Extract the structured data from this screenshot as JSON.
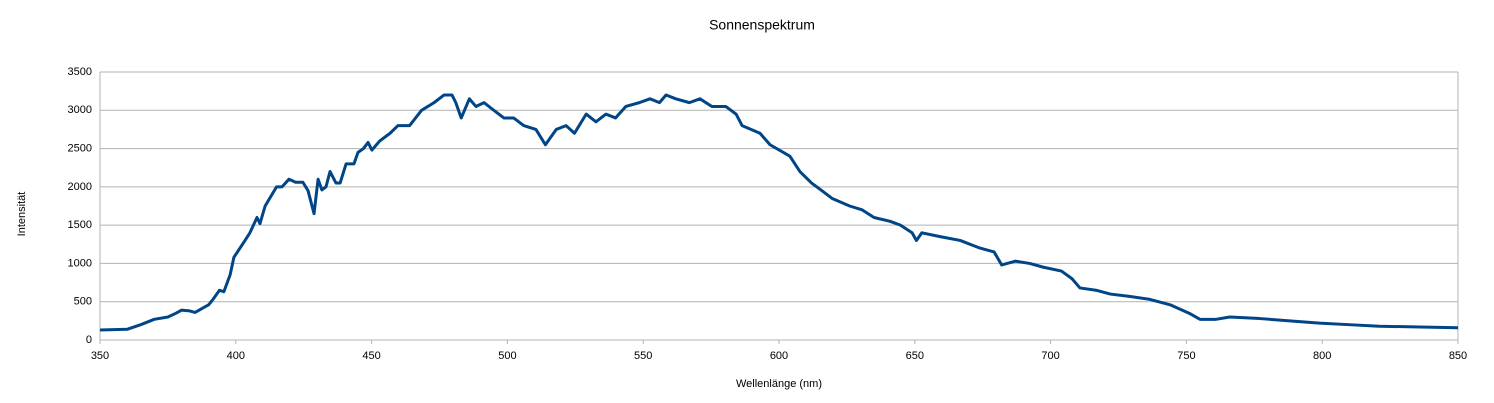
{
  "chart_data": {
    "type": "line",
    "title": "Sonnenspektrum",
    "x_label": "Wellenlänge (nm)",
    "y_label": "Intensität",
    "xlim": [
      350,
      850
    ],
    "xticks": [
      350,
      400,
      450,
      500,
      550,
      600,
      650,
      700,
      750,
      800,
      850
    ],
    "ylim": [
      0,
      3500
    ],
    "yticks": [
      0,
      500,
      1000,
      1500,
      2000,
      2500,
      3000,
      3500
    ],
    "grid": true,
    "series": [
      {
        "name": "Intensität",
        "color": "#004586",
        "x": [
          350,
          355,
          360,
          365,
          370,
          375,
          378,
          380,
          383,
          385,
          388,
          390,
          391.6,
          394,
          395.6,
          397.9,
          399.3,
          403.4,
          405.2,
          407.8,
          408.9,
          410.8,
          415,
          417,
          419.6,
          422,
          424.7,
          426.6,
          428.8,
          430.3,
          431.7,
          433.2,
          434.7,
          436.9,
          438.4,
          440.6,
          443.5,
          445,
          447,
          448.7,
          450.1,
          453,
          456.8,
          459.7,
          464,
          468.4,
          473,
          476.7,
          479.6,
          481,
          483,
          486,
          488.4,
          491.4,
          495,
          498.7,
          502.3,
          506,
          510.5,
          514,
          518,
          521.6,
          524.7,
          529,
          532.6,
          536.3,
          539.8,
          543.6,
          548.6,
          552.5,
          556,
          558.4,
          562,
          567,
          570.9,
          575.3,
          580.4,
          584.2,
          586.4,
          593,
          596.7,
          604,
          607.7,
          612,
          615.8,
          619.5,
          626,
          630.6,
          635,
          640.9,
          644.7,
          649,
          650.6,
          652.6,
          659.3,
          666.7,
          674,
          679.2,
          682,
          687,
          692.3,
          697.4,
          704,
          707.9,
          710.8,
          716.7,
          722,
          729,
          736.6,
          744,
          751,
          755,
          760.9,
          766,
          777,
          788,
          799,
          810,
          821,
          836,
          850
        ],
        "values": [
          130,
          135,
          140,
          200,
          270,
          300,
          350,
          390,
          380,
          360,
          420,
          460,
          530,
          650,
          630,
          850,
          1080,
          1300,
          1400,
          1600,
          1520,
          1750,
          2000,
          2000,
          2100,
          2060,
          2060,
          1950,
          1650,
          2100,
          1960,
          2000,
          2200,
          2050,
          2050,
          2300,
          2300,
          2450,
          2500,
          2580,
          2480,
          2600,
          2700,
          2800,
          2800,
          3000,
          3100,
          3200,
          3200,
          3100,
          2900,
          3150,
          3050,
          3100,
          3000,
          2900,
          2900,
          2800,
          2750,
          2550,
          2750,
          2800,
          2700,
          2950,
          2850,
          2950,
          2900,
          3050,
          3100,
          3150,
          3100,
          3200,
          3150,
          3100,
          3150,
          3050,
          3050,
          2950,
          2800,
          2700,
          2550,
          2400,
          2200,
          2050,
          1950,
          1850,
          1750,
          1700,
          1600,
          1550,
          1500,
          1400,
          1300,
          1400,
          1350,
          1300,
          1200,
          1150,
          980,
          1030,
          1000,
          950,
          900,
          800,
          680,
          650,
          600,
          570,
          530,
          460,
          350,
          270,
          270,
          300,
          280,
          250,
          220,
          200,
          180,
          170,
          160
        ]
      }
    ]
  }
}
